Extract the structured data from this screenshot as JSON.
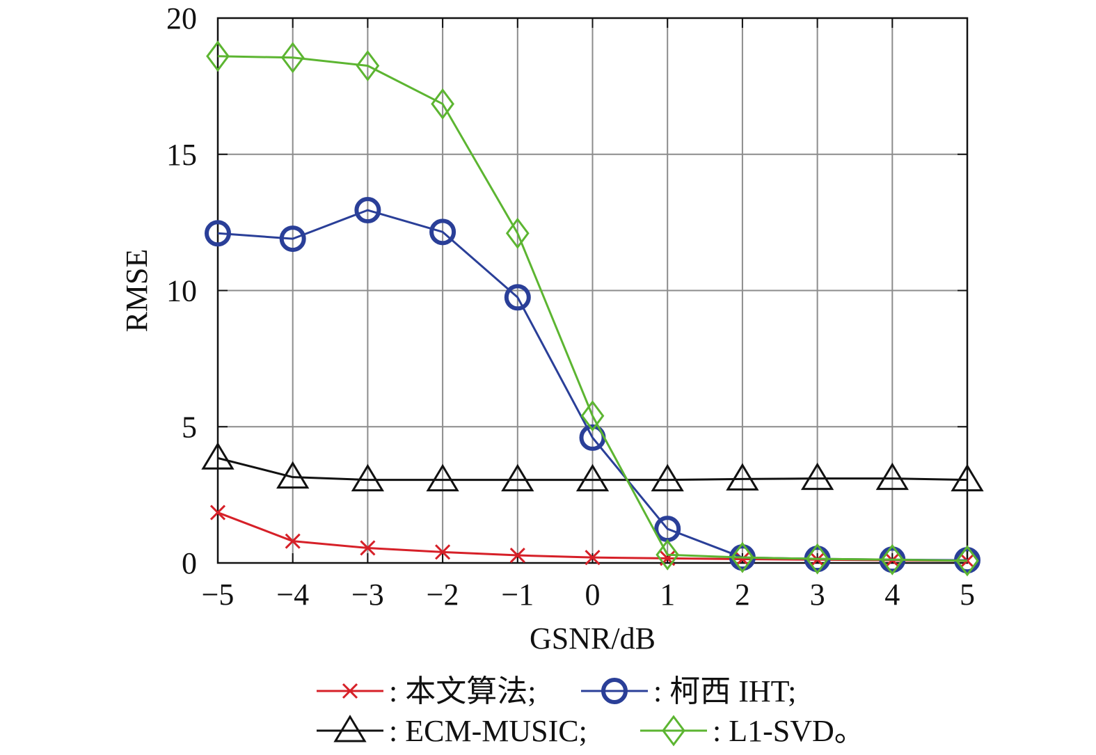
{
  "chart_data": {
    "type": "line",
    "title": "",
    "xlabel": "GSNR/dB",
    "ylabel": "RMSE",
    "xlim": [
      -5,
      5
    ],
    "ylim": [
      0,
      20
    ],
    "grid": true,
    "legend_position": "bottom",
    "x": [
      -5,
      -4,
      -3,
      -2,
      -1,
      0,
      1,
      2,
      3,
      4,
      5
    ],
    "x_tick_labels": [
      "−5",
      "−4",
      "−3",
      "−2",
      "−1",
      "0",
      "1",
      "2",
      "3",
      "4",
      "5"
    ],
    "y_ticks": [
      0,
      5,
      10,
      15,
      20
    ],
    "y_tick_labels": [
      "0",
      "5",
      "10",
      "15",
      "20"
    ],
    "series": [
      {
        "name": "本文算法",
        "legend_text": ": 本文算法;",
        "color": "#d62028",
        "marker": "x",
        "values": [
          1.85,
          0.8,
          0.55,
          0.4,
          0.28,
          0.2,
          0.17,
          0.14,
          0.12,
          0.1,
          0.08
        ]
      },
      {
        "name": "柯西 IHT",
        "legend_text": ": 柯西 IHT;",
        "color": "#2a3f98",
        "marker": "circle",
        "values": [
          12.1,
          11.9,
          12.95,
          12.15,
          9.75,
          4.6,
          1.25,
          0.2,
          0.15,
          0.12,
          0.1
        ]
      },
      {
        "name": "ECM-MUSIC",
        "legend_text": ": ECM-MUSIC;",
        "color": "#111111",
        "marker": "triangle",
        "values": [
          3.85,
          3.15,
          3.05,
          3.05,
          3.05,
          3.05,
          3.05,
          3.08,
          3.1,
          3.1,
          3.05
        ]
      },
      {
        "name": "L1-SVD",
        "legend_text": ": L1-SVD。",
        "color": "#5cb531",
        "marker": "diamond",
        "values": [
          18.6,
          18.55,
          18.25,
          16.85,
          12.1,
          5.4,
          0.3,
          0.2,
          0.15,
          0.12,
          0.08
        ]
      }
    ]
  }
}
